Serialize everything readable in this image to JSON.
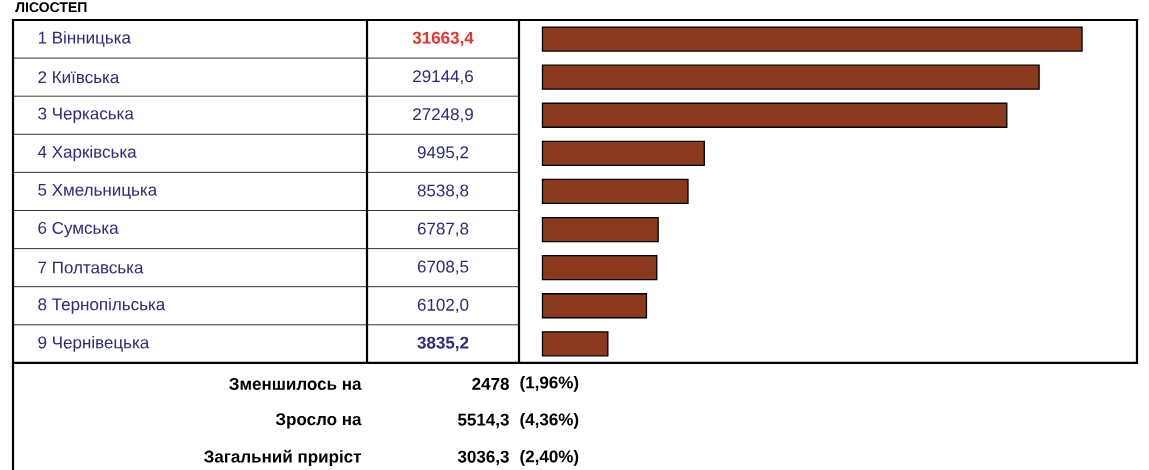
{
  "chart_data": {
    "type": "bar",
    "orientation": "horizontal",
    "title": "ЛІСОСТЕП",
    "categories": [
      "1 Вінницька",
      "2 Київська",
      "3 Черкаська",
      "4 Харківська",
      "5 Хмельницька",
      "6 Сумська",
      "7 Полтавська",
      "8 Тернопільська",
      "9 Чернівецька"
    ],
    "values": [
      31663.4,
      29144.6,
      27248.9,
      9495.2,
      8538.8,
      6787.8,
      6708.5,
      6102.0,
      3835.2
    ],
    "value_labels": [
      "31663,4",
      "29144,6",
      "27248,9",
      "9495,2",
      "8538,8",
      "6787,8",
      "6708,5",
      "6102,0",
      "3835,2"
    ],
    "color": "#8b3a1e",
    "annotations": [
      "Зменшилось на",
      "2478",
      "(1,96%)",
      "Зросло на",
      "5514,3",
      "(4,36%)",
      "Загальний приріст",
      "3036,3",
      "(2,40%)"
    ]
  }
}
